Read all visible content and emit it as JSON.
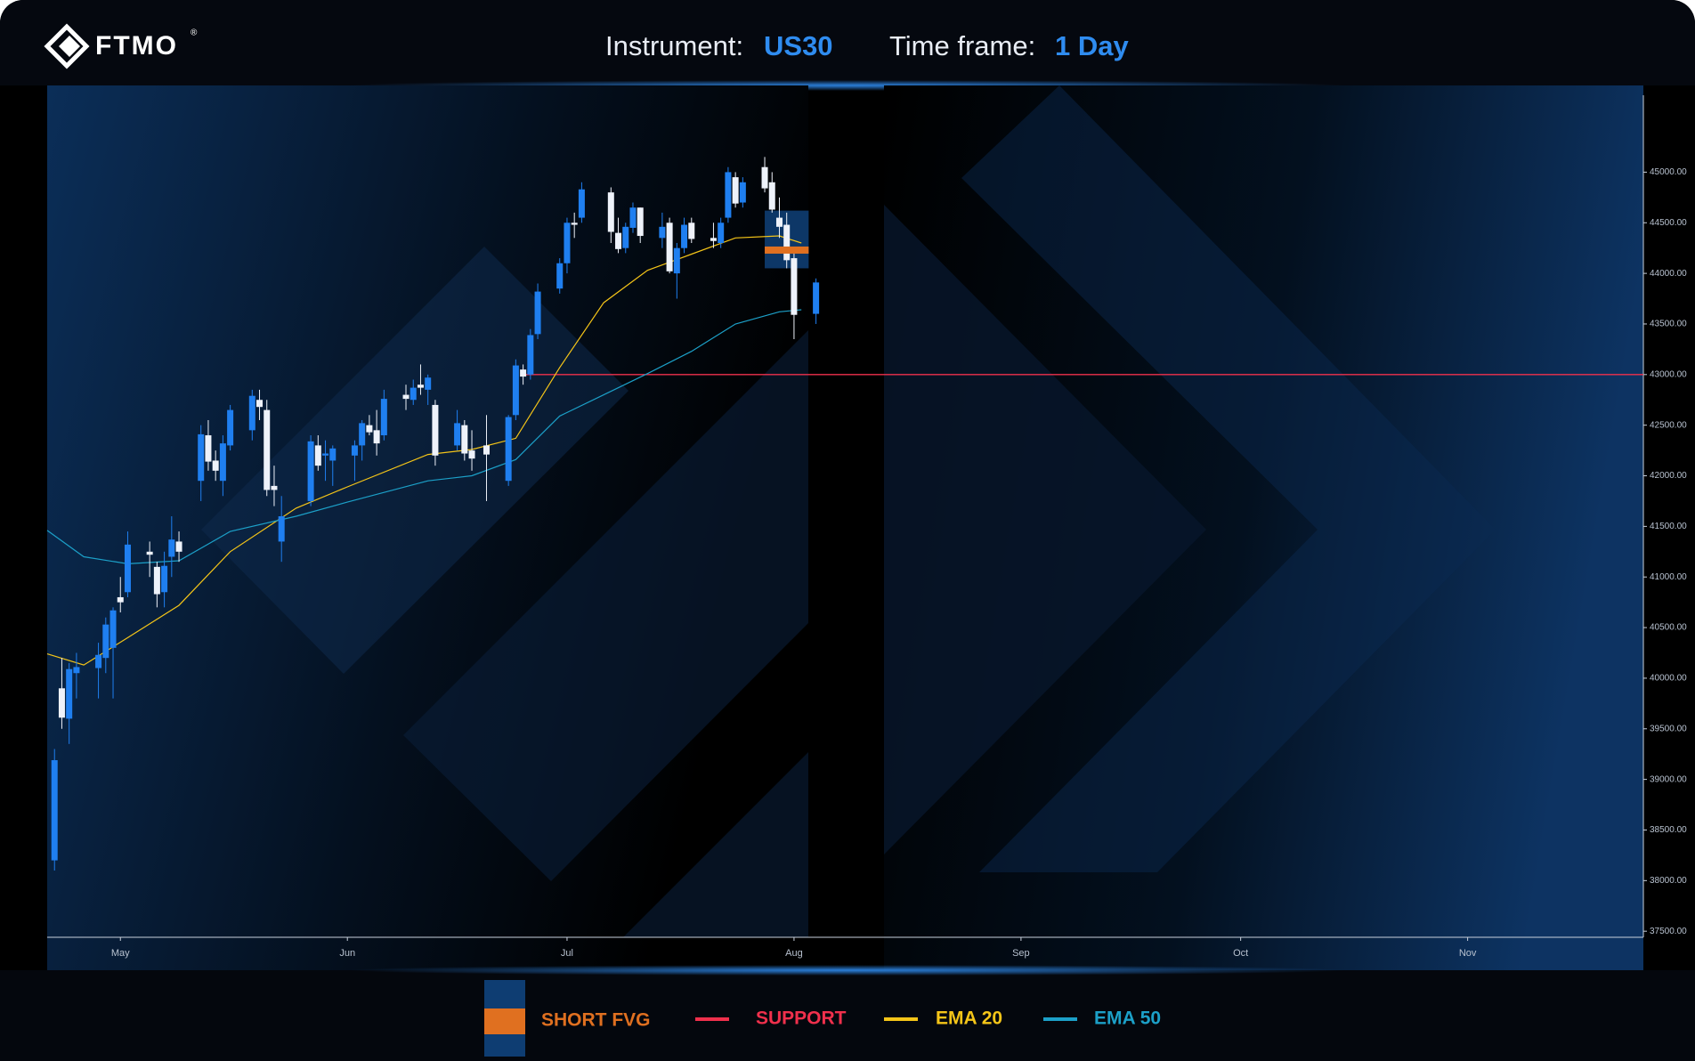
{
  "header": {
    "logo": "FTMO",
    "logo_mark": "®",
    "instrument_label": "Instrument:",
    "instrument": "US30",
    "timeframe_label": "Time frame:",
    "timeframe": "1 Day"
  },
  "chart_data": {
    "type": "candlestick",
    "x": [
      1,
      2,
      3,
      4,
      7,
      8,
      9,
      10,
      11,
      14,
      15,
      16,
      17,
      18,
      21,
      22,
      23,
      24,
      25,
      28,
      29,
      30,
      31,
      32,
      36,
      37,
      38,
      39,
      42,
      43,
      44,
      45,
      46,
      49,
      50,
      51,
      52,
      53,
      56,
      57,
      58,
      60,
      63,
      64,
      65,
      66,
      67,
      70,
      71,
      72,
      73,
      77,
      78,
      79,
      80,
      81,
      84,
      85,
      86,
      87,
      88,
      91,
      92,
      93,
      94,
      95,
      98,
      99,
      100,
      101,
      102,
      105
    ],
    "open": [
      38200,
      39900,
      39600,
      40050,
      40100,
      40200,
      40300,
      40800,
      40850,
      41250,
      41100,
      40850,
      41200,
      41350,
      41950,
      42400,
      42150,
      41950,
      42300,
      42450,
      42750,
      42650,
      41900,
      41350,
      41750,
      42300,
      42200,
      42150,
      42200,
      42300,
      42500,
      42450,
      42400,
      42800,
      42750,
      42900,
      42850,
      42700,
      42300,
      42500,
      42250,
      42300,
      41950,
      42600,
      43050,
      43000,
      43400,
      43850,
      44100,
      44500,
      44550,
      44800,
      44400,
      44250,
      44450,
      44650,
      44350,
      44500,
      44000,
      44250,
      44500,
      44350,
      44300,
      44550,
      44950,
      44700,
      45050,
      44900,
      44550,
      44480,
      44150,
      43600
    ],
    "high": [
      39300,
      40200,
      40150,
      40250,
      40350,
      40600,
      40700,
      41000,
      41450,
      41350,
      41150,
      41250,
      41600,
      41450,
      42500,
      42550,
      42250,
      42400,
      42700,
      42850,
      42850,
      42750,
      42100,
      41800,
      42400,
      42400,
      42350,
      42300,
      42350,
      42550,
      42600,
      42650,
      42850,
      42900,
      42950,
      43100,
      43000,
      42750,
      42650,
      42550,
      42450,
      42600,
      42600,
      43150,
      43100,
      43450,
      43900,
      44150,
      44550,
      44600,
      44900,
      44850,
      44550,
      44500,
      44700,
      44650,
      44600,
      44550,
      44300,
      44550,
      44550,
      44500,
      44550,
      45050,
      45000,
      44950,
      45150,
      45000,
      44750,
      44600,
      44200,
      43950
    ],
    "low": [
      38100,
      39500,
      39350,
      39800,
      39800,
      40050,
      39800,
      40650,
      40800,
      41000,
      40700,
      40700,
      41000,
      41150,
      41750,
      42050,
      41950,
      41800,
      42250,
      42350,
      42550,
      41800,
      41700,
      41150,
      41700,
      42050,
      41950,
      41900,
      41950,
      42150,
      42400,
      42200,
      42350,
      42650,
      42700,
      42800,
      42700,
      42100,
      42250,
      42150,
      42050,
      41750,
      41900,
      42550,
      42900,
      42950,
      43350,
      43800,
      44000,
      44350,
      44500,
      44300,
      44200,
      44200,
      44400,
      44300,
      44250,
      44000,
      43750,
      44200,
      44300,
      44250,
      44250,
      44500,
      44650,
      44650,
      44800,
      44600,
      44350,
      44050,
      43350,
      43500
    ],
    "close": [
      39190,
      39610,
      40090,
      40110,
      40230,
      40530,
      40670,
      40750,
      41320,
      41220,
      40830,
      41110,
      41370,
      41250,
      42410,
      42140,
      42050,
      42320,
      42650,
      42790,
      42680,
      41860,
      41860,
      41600,
      42340,
      42100,
      42220,
      42270,
      42300,
      42520,
      42430,
      42320,
      42760,
      42760,
      42870,
      42870,
      42970,
      42200,
      42520,
      42220,
      42170,
      42210,
      42580,
      43090,
      42980,
      43390,
      43820,
      44100,
      44500,
      44480,
      44830,
      44410,
      44240,
      44460,
      44650,
      44370,
      44460,
      44020,
      44250,
      44480,
      44340,
      44320,
      44500,
      45000,
      44690,
      44900,
      44840,
      44630,
      44460,
      44130,
      43590,
      43910
    ],
    "up_color": "#1f7ff0",
    "down_color": "#eef2fa",
    "xlim": [
      0,
      218
    ],
    "xticks": [
      {
        "value": 10,
        "label": "May"
      },
      {
        "value": 41,
        "label": "Jun"
      },
      {
        "value": 71,
        "label": "Jul"
      },
      {
        "value": 102,
        "label": "Aug"
      },
      {
        "value": 133,
        "label": "Sep"
      },
      {
        "value": 163,
        "label": "Oct"
      },
      {
        "value": 194,
        "label": "Nov"
      }
    ],
    "ylim": [
      37440,
      45760
    ],
    "yticks": [
      {
        "value": 37500,
        "label": "37500.00"
      },
      {
        "value": 38000,
        "label": "38000.00"
      },
      {
        "value": 38500,
        "label": "38500.00"
      },
      {
        "value": 39000,
        "label": "39000.00"
      },
      {
        "value": 39500,
        "label": "39500.00"
      },
      {
        "value": 40000,
        "label": "40000.00"
      },
      {
        "value": 40500,
        "label": "40500.00"
      },
      {
        "value": 41000,
        "label": "41000.00"
      },
      {
        "value": 41500,
        "label": "41500.00"
      },
      {
        "value": 42000,
        "label": "42000.00"
      },
      {
        "value": 42500,
        "label": "42500.00"
      },
      {
        "value": 43000,
        "label": "43000.00"
      },
      {
        "value": 43500,
        "label": "43500.00"
      },
      {
        "value": 44000,
        "label": "44000.00"
      },
      {
        "value": 44500,
        "label": "44500.00"
      },
      {
        "value": 45000,
        "label": "45000.00"
      }
    ],
    "series": [
      {
        "name": "EMA 20",
        "color": "#f5c518",
        "x": [
          0,
          5,
          11,
          18,
          25,
          34,
          41,
          52,
          58,
          64,
          70,
          76,
          82,
          88,
          94,
          100,
          103
        ],
        "values": [
          40240,
          40130,
          40400,
          40720,
          41250,
          41680,
          41890,
          42210,
          42260,
          42370,
          43070,
          43710,
          44030,
          44190,
          44350,
          44370,
          44300
        ]
      },
      {
        "name": "EMA 50",
        "color": "#1ca0c8",
        "x": [
          0,
          5,
          11,
          18,
          25,
          34,
          41,
          52,
          58,
          64,
          70,
          76,
          82,
          88,
          94,
          100,
          103
        ],
        "values": [
          41460,
          41200,
          41130,
          41160,
          41450,
          41600,
          41740,
          41950,
          42000,
          42160,
          42590,
          42800,
          43010,
          43230,
          43500,
          43620,
          43640
        ]
      }
    ],
    "support": {
      "name": "SUPPORT",
      "color": "#f0304c",
      "value": 43000,
      "x_start": 65
    },
    "fvg": {
      "name": "SHORT FVG",
      "color": "#0e3d72",
      "line_color": "#e07020",
      "top": 44620,
      "bottom": 44050,
      "level": 44230,
      "x_start": 98,
      "x_end": 104
    }
  }
}
